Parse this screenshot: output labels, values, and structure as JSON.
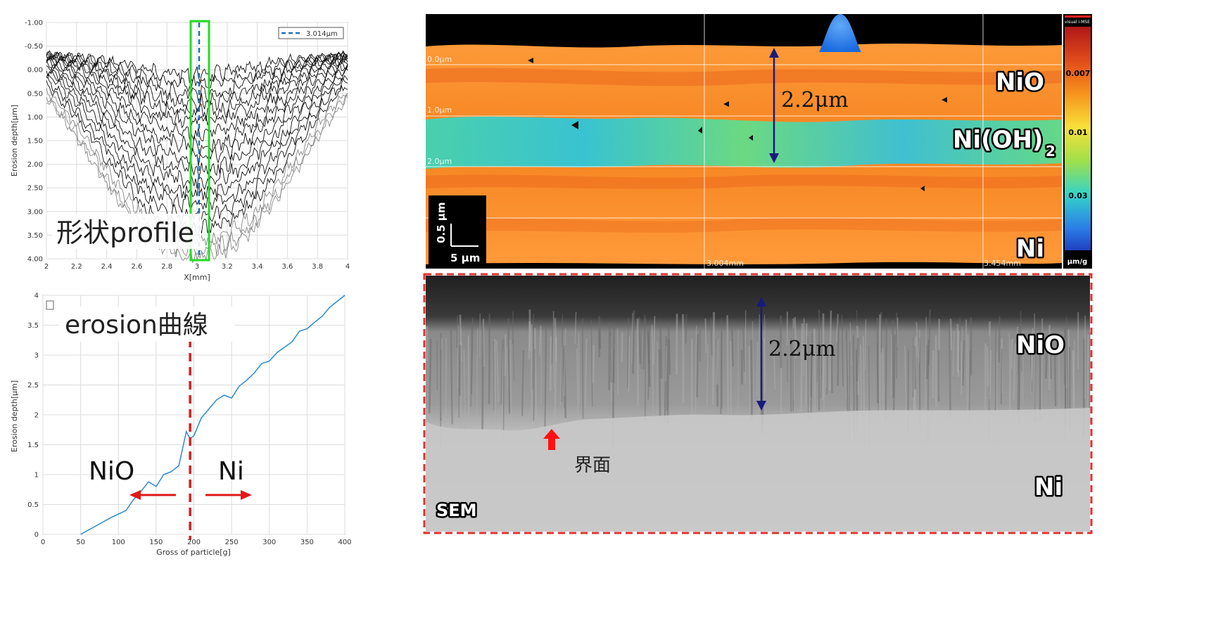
{
  "chart_data": [
    {
      "type": "line",
      "chart": "profile",
      "annotation": "形状profile",
      "xlabel": "X[mm]",
      "ylabel": "Erosion depth[μm]",
      "xlim": [
        2,
        4
      ],
      "ylim": [
        -1.0,
        4.0
      ],
      "y_inverted": true,
      "x_ticks": [
        "2",
        "2.2",
        "2.4",
        "2.6",
        "2.8",
        "3",
        "3.2",
        "3.4",
        "3.6",
        "3.8",
        "4"
      ],
      "y_ticks": [
        "-1.00",
        "-0.50",
        "0.00",
        "0.50",
        "1.00",
        "1.50",
        "2.00",
        "2.50",
        "3.00",
        "3.50",
        "4.00"
      ],
      "grid": true,
      "legend": {
        "position": "top-right",
        "label": "3.014μm",
        "color": "#1f6fb5"
      },
      "marker_x": 3.014,
      "highlight_box": {
        "x_from": 2.94,
        "x_to": 3.08,
        "color": "#1fdc1f"
      },
      "series_depths": [
        0.05,
        0.25,
        0.45,
        0.65,
        0.85,
        1.05,
        1.3,
        1.55,
        1.8,
        2.05,
        2.3,
        2.55,
        2.8,
        3.05,
        3.3,
        3.55,
        3.75,
        3.88
      ]
    },
    {
      "type": "line",
      "chart": "erosion",
      "annotation": "erosion曲線",
      "xlabel": "Gross of particle[g]",
      "ylabel": "Erosion depth[μm]",
      "xlim": [
        0,
        400
      ],
      "ylim": [
        0,
        4
      ],
      "x_ticks": [
        "0",
        "50",
        "100",
        "150",
        "200",
        "250",
        "300",
        "350",
        "400"
      ],
      "y_ticks": [
        "0",
        "0.5",
        "1",
        "1.5",
        "2",
        "2.5",
        "3",
        "3.5",
        "4"
      ],
      "grid": true,
      "line_color": "#2a8ad0",
      "x": [
        50,
        60,
        70,
        80,
        90,
        100,
        110,
        120,
        130,
        140,
        150,
        160,
        170,
        180,
        190,
        195,
        200,
        210,
        220,
        230,
        240,
        250,
        260,
        270,
        280,
        290,
        300,
        310,
        320,
        330,
        340,
        350,
        360,
        370,
        380,
        390,
        400
      ],
      "y": [
        0.0,
        0.07,
        0.14,
        0.21,
        0.28,
        0.34,
        0.4,
        0.58,
        0.72,
        0.88,
        0.8,
        1.0,
        1.05,
        1.15,
        1.72,
        1.6,
        1.65,
        1.95,
        2.1,
        2.25,
        2.33,
        2.28,
        2.48,
        2.58,
        2.7,
        2.86,
        2.9,
        3.04,
        3.13,
        3.22,
        3.4,
        3.44,
        3.55,
        3.65,
        3.8,
        3.9,
        4.0
      ],
      "divider_x": 195,
      "divider_color": "#d62020",
      "labels": {
        "left": "NiO",
        "right": "Ni"
      }
    }
  ],
  "colormap_panel": {
    "layer_labels": [
      "NiO",
      "Ni(OH)",
      "Ni"
    ],
    "subscript": "2",
    "thickness": "2.2μm",
    "depth_marks": [
      "0.0μm",
      "1.0μm",
      "2.0μm"
    ],
    "x_marks": [
      "3.004mm",
      "3.454mm"
    ],
    "colorbar_title": "visual i-MSE",
    "colorbar_ticks": [
      "0.007",
      "0.01",
      "0.03"
    ],
    "colorbar_unit": "μm/g",
    "scale_vertical": "0.5 μm",
    "scale_horizontal": "5 μm"
  },
  "sem_panel": {
    "label": "SEM",
    "thickness": "2.2μm",
    "nio": "NiO",
    "ni": "Ni",
    "interface": "界面",
    "border_color": "#e03030"
  }
}
